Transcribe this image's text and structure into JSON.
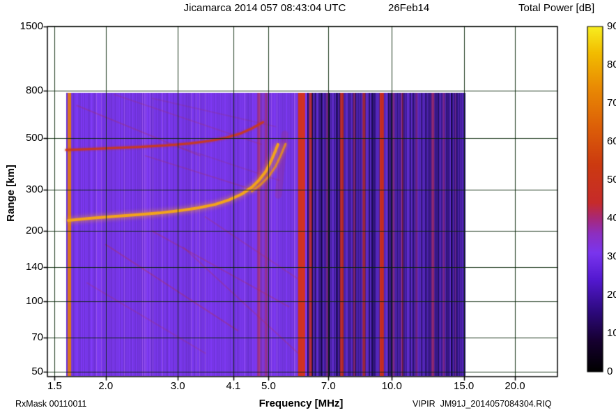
{
  "header": {
    "title": "Jicamarca 2014 057 08:43:04 UTC",
    "date": "26Feb14",
    "colorbar_title": "Total Power [dB]"
  },
  "footer": {
    "left": "RxMask 00110011",
    "right": "VIPIR  JM91J_2014057084304.RIQ"
  },
  "chart_data": {
    "type": "heatmap",
    "title": "Jicamarca 2014 057 08:43:04 UTC 26Feb14",
    "xlabel": "Frequency [MHz]",
    "ylabel": "Range [km]",
    "colorbar_label": "Total Power [dB]",
    "x_axis": {
      "scale": "log",
      "min": 1.44,
      "max": 25.4,
      "ticks": [
        1.5,
        2.0,
        3.0,
        4.1,
        5.0,
        7.0,
        10.0,
        15.0,
        20.0
      ],
      "tick_labels": [
        "1.5",
        "2.0",
        "3.0",
        "4.1",
        "5.0",
        "7.0",
        "10.0",
        "15.0",
        "20.0"
      ]
    },
    "y_axis": {
      "scale": "log",
      "min": 47.6,
      "max": 1503,
      "ticks": [
        50,
        70,
        100,
        140,
        200,
        300,
        500,
        800,
        1500
      ],
      "tick_labels": [
        "50",
        "70",
        "100",
        "140",
        "200",
        "300",
        "500",
        "800",
        "1500"
      ]
    },
    "colorbar": {
      "min": 0,
      "max": 90,
      "ticks": [
        0,
        10,
        20,
        30,
        40,
        50,
        60,
        70,
        80,
        90
      ],
      "stops": [
        [
          0,
          "#000000"
        ],
        [
          8,
          "#160030"
        ],
        [
          16,
          "#2e0a80"
        ],
        [
          24,
          "#5318d0"
        ],
        [
          31,
          "#7a35ee"
        ],
        [
          36,
          "#8d2fc0"
        ],
        [
          40,
          "#a82878"
        ],
        [
          44,
          "#c62b2b"
        ],
        [
          54,
          "#cc3a10"
        ],
        [
          64,
          "#dd6008"
        ],
        [
          74,
          "#e98a04"
        ],
        [
          83,
          "#f2bc00"
        ],
        [
          90,
          "#f8ee20"
        ]
      ]
    },
    "data_extent": {
      "f_min": 1.6,
      "f_max": 15.05,
      "range_min": 47.6,
      "range_max": 780
    },
    "field": {
      "base_left": "#7a35e0",
      "base_right": "#4a20b0",
      "split_freq": 6.2,
      "grid_color": "rgba(6,36,6,0.9)"
    },
    "rfi_stripes": [
      {
        "f": 1.63,
        "w": 5,
        "color": "#e07a14",
        "alpha": 0.95
      },
      {
        "f": 4.73,
        "w": 4,
        "color": "#c22c3a",
        "alpha": 0.5
      },
      {
        "f": 4.93,
        "w": 3,
        "color": "#c22c3a",
        "alpha": 0.42
      },
      {
        "f": 4.85,
        "w": 16,
        "color": "#a03060",
        "alpha": 0.2
      },
      {
        "f": 6.02,
        "w": 10,
        "color": "#d63118",
        "alpha": 0.95
      },
      {
        "f": 6.33,
        "w": 4,
        "color": "#d63118",
        "alpha": 0.75
      },
      {
        "f": 6.95,
        "w": 3,
        "color": "#b02a60",
        "alpha": 0.4
      },
      {
        "f": 7.55,
        "w": 5,
        "color": "#d63118",
        "alpha": 0.8
      },
      {
        "f": 8.1,
        "w": 3,
        "color": "#c03050",
        "alpha": 0.5
      },
      {
        "f": 8.55,
        "w": 4,
        "color": "#d63118",
        "alpha": 0.65
      },
      {
        "f": 9.45,
        "w": 6,
        "color": "#d63118",
        "alpha": 0.9
      },
      {
        "f": 10.1,
        "w": 3,
        "color": "#b02a50",
        "alpha": 0.45
      },
      {
        "f": 10.6,
        "w": 3,
        "color": "#c23040",
        "alpha": 0.5
      },
      {
        "f": 11.5,
        "w": 3,
        "color": "#b02a60",
        "alpha": 0.4
      },
      {
        "f": 12.6,
        "w": 4,
        "color": "#c23040",
        "alpha": 0.55
      },
      {
        "f": 13.4,
        "w": 3,
        "color": "#b02a50",
        "alpha": 0.4
      },
      {
        "f": 14.3,
        "w": 2,
        "color": "#b02a50",
        "alpha": 0.3
      }
    ],
    "traces": [
      {
        "name": "f-layer-trace-o-mode",
        "color": "#f2a31c",
        "width": 4,
        "glow": 7,
        "alpha": 1,
        "points": [
          [
            1.62,
            222
          ],
          [
            1.85,
            227
          ],
          [
            2.1,
            231
          ],
          [
            2.4,
            235
          ],
          [
            2.7,
            239
          ],
          [
            3.0,
            244
          ],
          [
            3.35,
            251
          ],
          [
            3.7,
            260
          ],
          [
            4.0,
            272
          ],
          [
            4.3,
            288
          ],
          [
            4.55,
            308
          ],
          [
            4.75,
            332
          ],
          [
            4.92,
            360
          ],
          [
            5.06,
            396
          ],
          [
            5.18,
            436
          ],
          [
            5.27,
            470
          ]
        ]
      },
      {
        "name": "f-layer-trace-x-mode",
        "color": "#e08a28",
        "width": 3,
        "glow": 5,
        "alpha": 0.9,
        "points": [
          [
            4.55,
            296
          ],
          [
            4.78,
            316
          ],
          [
            5.0,
            342
          ],
          [
            5.2,
            378
          ],
          [
            5.36,
            424
          ],
          [
            5.5,
            472
          ]
        ]
      },
      {
        "name": "upper-echo-trace",
        "color": "#cc3a16",
        "width": 3,
        "glow": 3,
        "alpha": 0.8,
        "points": [
          [
            1.6,
            445
          ],
          [
            2.0,
            452
          ],
          [
            2.4,
            458
          ],
          [
            2.8,
            465
          ],
          [
            3.2,
            474
          ],
          [
            3.6,
            487
          ],
          [
            3.95,
            503
          ],
          [
            4.25,
            522
          ],
          [
            4.55,
            550
          ],
          [
            4.85,
            586
          ]
        ]
      }
    ],
    "faint_streaks": [
      {
        "color": "#b03040",
        "width": 2,
        "alpha": 0.28,
        "points": [
          [
            1.7,
            690
          ],
          [
            3.4,
            420
          ]
        ]
      },
      {
        "color": "#b03040",
        "width": 2,
        "alpha": 0.22,
        "points": [
          [
            2.1,
            768
          ],
          [
            4.8,
            470
          ]
        ]
      },
      {
        "color": "#a03050",
        "width": 2,
        "alpha": 0.2,
        "points": [
          [
            2.6,
            740
          ],
          [
            5.2,
            560
          ]
        ]
      },
      {
        "color": "#b03040",
        "width": 2,
        "alpha": 0.25,
        "points": [
          [
            2.5,
            420
          ],
          [
            4.6,
            300
          ]
        ]
      },
      {
        "color": "#a03050",
        "width": 2,
        "alpha": 0.2,
        "points": [
          [
            3.0,
            460
          ],
          [
            5.3,
            330
          ]
        ]
      },
      {
        "color": "#c03030",
        "width": 2,
        "alpha": 0.3,
        "points": [
          [
            2.0,
            175
          ],
          [
            4.2,
            75
          ]
        ]
      },
      {
        "color": "#c03030",
        "width": 2,
        "alpha": 0.26,
        "points": [
          [
            2.6,
            200
          ],
          [
            5.6,
            95
          ]
        ]
      },
      {
        "color": "#c03030",
        "width": 2,
        "alpha": 0.24,
        "points": [
          [
            3.1,
            170
          ],
          [
            5.9,
            60
          ]
        ]
      },
      {
        "color": "#c03030",
        "width": 2,
        "alpha": 0.22,
        "points": [
          [
            3.5,
            230
          ],
          [
            6.1,
            120
          ]
        ]
      },
      {
        "color": "#c03030",
        "width": 2,
        "alpha": 0.2,
        "points": [
          [
            1.8,
            120
          ],
          [
            3.5,
            60
          ]
        ]
      },
      {
        "color": "#cc3020",
        "width": 10,
        "alpha": 0.15,
        "points": [
          [
            5.28,
            285
          ],
          [
            5.48,
            520
          ]
        ]
      }
    ]
  }
}
